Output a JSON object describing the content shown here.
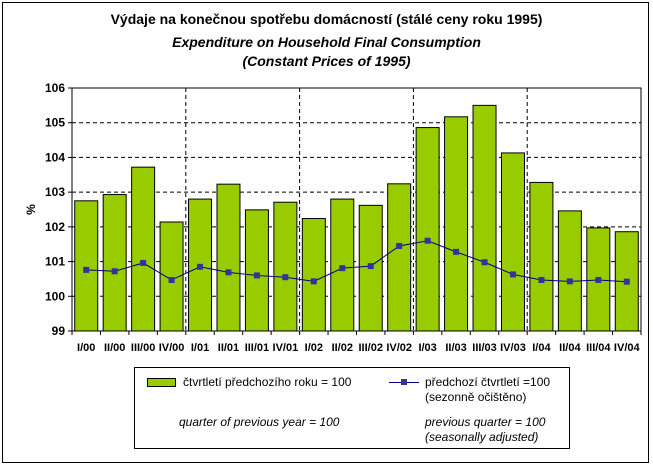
{
  "title": {
    "cz": "Výdaje na konečnou spotřebu domácností (stálé ceny roku 1995)",
    "en_line1": "Expenditure on Household Final Consumption",
    "en_line2": "(Constant Prices of 1995)"
  },
  "legend": {
    "bars_cz": "čtvrtletí předchozího roku = 100",
    "bars_en": "quarter of previous year = 100",
    "line_cz_1": "předchozí čtvrtletí =100",
    "line_cz_2": "(sezonně očištěno)",
    "line_en_1": "previous quarter = 100",
    "line_en_2": "(seasonally adjusted)"
  },
  "colors": {
    "bar": "#99cc00",
    "line": "#000080",
    "marker": "#333399",
    "plot_bg": "#ffffff"
  },
  "chart_data": {
    "type": "bar",
    "title": "Výdaje na konečnou spotřebu domácností (stálé ceny roku 1995)",
    "xlabel": "",
    "ylabel": "%",
    "ylim": [
      99,
      106
    ],
    "yticks": [
      99,
      100,
      101,
      102,
      103,
      104,
      105,
      106
    ],
    "grid": "horizontal dashed, vertical dashed between years",
    "legend_position": "bottom",
    "categories": [
      "I/00",
      "II/00",
      "III/00",
      "IV/00",
      "I/01",
      "II/01",
      "III/01",
      "IV/01",
      "I/02",
      "II/02",
      "III/02",
      "IV/02",
      "I/03",
      "II/03",
      "III/03",
      "IV/03",
      "I/04",
      "II/04",
      "III/04",
      "IV/04"
    ],
    "series": [
      {
        "name": "čtvrtletí předchozího roku = 100",
        "kind": "bar",
        "values": [
          102.75,
          102.93,
          103.72,
          102.14,
          102.8,
          103.23,
          102.49,
          102.71,
          102.24,
          102.8,
          102.62,
          103.24,
          104.86,
          105.17,
          105.5,
          104.13,
          103.28,
          102.46,
          101.97,
          101.86
        ]
      },
      {
        "name": "předchozí čtvrtletí =100 (sezonně očištěno)",
        "kind": "line",
        "values": [
          100.76,
          100.72,
          100.96,
          100.47,
          100.85,
          100.69,
          100.6,
          100.55,
          100.43,
          100.81,
          100.87,
          101.45,
          101.6,
          101.28,
          100.98,
          100.63,
          100.47,
          100.43,
          100.47,
          100.42
        ]
      }
    ]
  }
}
